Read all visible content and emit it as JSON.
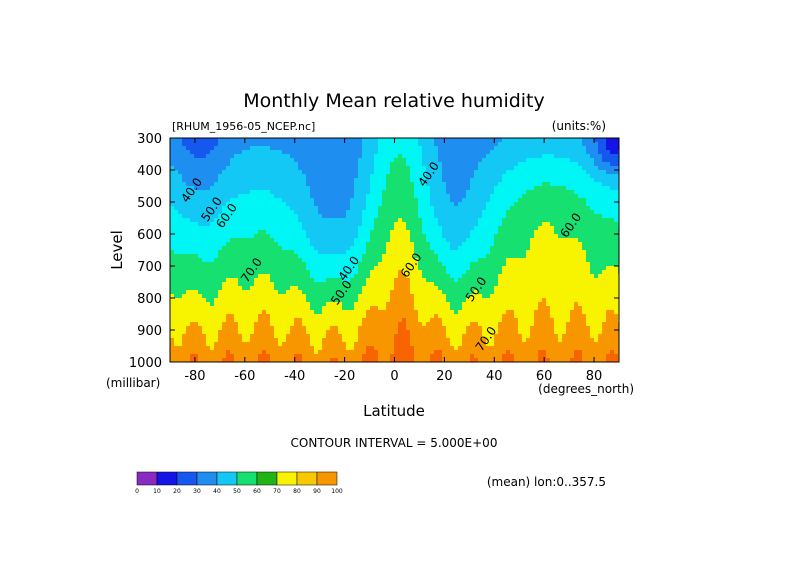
{
  "header": {
    "title": "Monthly Mean relative humidity",
    "dataset": "[RHUM_1956-05_NCEP.nc]",
    "units": "(units:%)"
  },
  "footer": {
    "contour_interval": "CONTOUR INTERVAL = 5.000E+00",
    "mean_note": "(mean) lon:0..357.5"
  },
  "chart_data": {
    "type": "contour",
    "title": "Monthly Mean relative humidity",
    "xlabel": "Latitude",
    "xunit": "(degrees_north)",
    "ylabel": "Level",
    "yunit": "(millibar)",
    "xlim": [
      -90,
      90
    ],
    "ylim": [
      1000,
      300
    ],
    "x_ticks": [
      -80,
      -60,
      -40,
      -20,
      0,
      20,
      40,
      60,
      80
    ],
    "y_ticks": [
      300,
      400,
      500,
      600,
      700,
      800,
      900,
      1000
    ],
    "contour_interval": 5,
    "contour_labels": [
      {
        "text": "40.0",
        "x": -80,
        "y": 470
      },
      {
        "text": "50.0",
        "x": -72,
        "y": 530
      },
      {
        "text": "60.0",
        "x": -66,
        "y": 550
      },
      {
        "text": "70.0",
        "x": -56,
        "y": 720
      },
      {
        "text": "40.0",
        "x": -17,
        "y": 715
      },
      {
        "text": "50.0",
        "x": -20,
        "y": 790
      },
      {
        "text": "40.0",
        "x": 15,
        "y": 420
      },
      {
        "text": "60.0",
        "x": 8,
        "y": 705
      },
      {
        "text": "50.0",
        "x": 34,
        "y": 780
      },
      {
        "text": "70.0",
        "x": 38,
        "y": 935
      },
      {
        "text": "60.0",
        "x": 72,
        "y": 580
      }
    ],
    "colorbar": {
      "ticks": [
        "0",
        "10",
        "20",
        "30",
        "40",
        "50",
        "60",
        "70",
        "80",
        "90",
        "100"
      ],
      "colors": [
        "#8a2bc0",
        "#1414e6",
        "#1458f0",
        "#1e8ef0",
        "#14c8f5",
        "#00f5f5",
        "#16e070",
        "#22b414",
        "#f8f400",
        "#f8c800",
        "#f89600",
        "#f86400",
        "#f81400"
      ]
    }
  }
}
